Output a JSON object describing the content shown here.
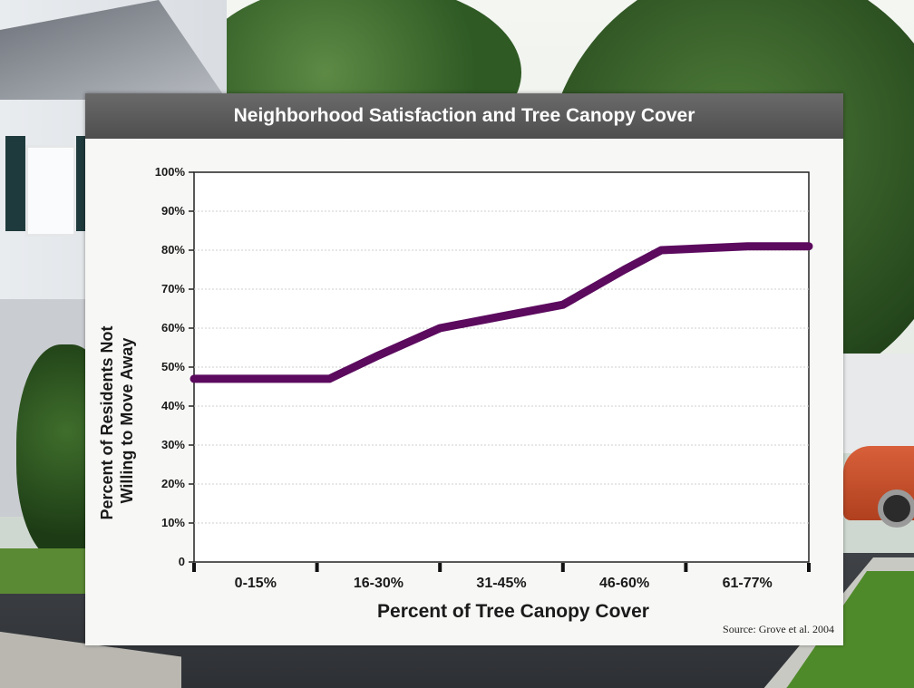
{
  "chart_data": {
    "type": "line",
    "title": "Neighborhood Satisfaction and Tree Canopy Cover",
    "xlabel": "Percent of Tree Canopy Cover",
    "ylabel": [
      "Percent of Residents Not",
      "Willing to Move Away"
    ],
    "categories": [
      "0-15%",
      "16-30%",
      "31-45%",
      "46-60%",
      "61-77%"
    ],
    "y_ticks": [
      "0",
      "10%",
      "20%",
      "30%",
      "40%",
      "50%",
      "60%",
      "70%",
      "80%",
      "90%",
      "100%"
    ],
    "ylim": [
      0,
      100
    ],
    "grid": true,
    "series": [
      {
        "x": [
          0,
          0.6,
          1,
          1.5,
          2,
          2.5,
          3,
          3.3,
          4
        ],
        "values": [
          47,
          47,
          53,
          60,
          63,
          66,
          75,
          80,
          81
        ]
      }
    ],
    "line_color": "#5b0a5e",
    "source": "Source: Grove et al. 2004"
  }
}
